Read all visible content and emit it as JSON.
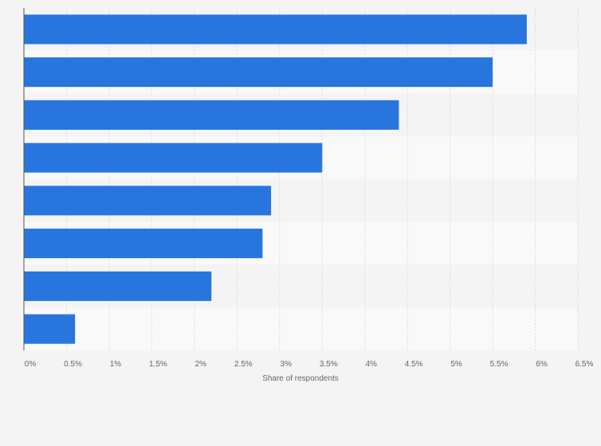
{
  "chart_data": {
    "type": "bar",
    "orientation": "horizontal",
    "categories": [
      "",
      "",
      "",
      "",
      "",
      "",
      "",
      ""
    ],
    "values": [
      5.9,
      5.5,
      4.4,
      3.5,
      2.9,
      2.8,
      2.2,
      0.6
    ],
    "title": "",
    "xlabel": "Share of respondents",
    "ylabel": "",
    "xlim": [
      0,
      6.5
    ],
    "ticks": [
      0,
      0.5,
      1,
      1.5,
      2,
      2.5,
      3,
      3.5,
      4,
      4.5,
      5,
      5.5,
      6,
      6.5
    ],
    "tick_labels": [
      "0%",
      "0.5%",
      "1%",
      "1.5%",
      "2%",
      "2.5%",
      "3%",
      "3.5%",
      "4%",
      "4.5%",
      "5%",
      "5.5%",
      "6%",
      "6.5%"
    ],
    "grid": true,
    "bar_color": "#2876dd"
  }
}
